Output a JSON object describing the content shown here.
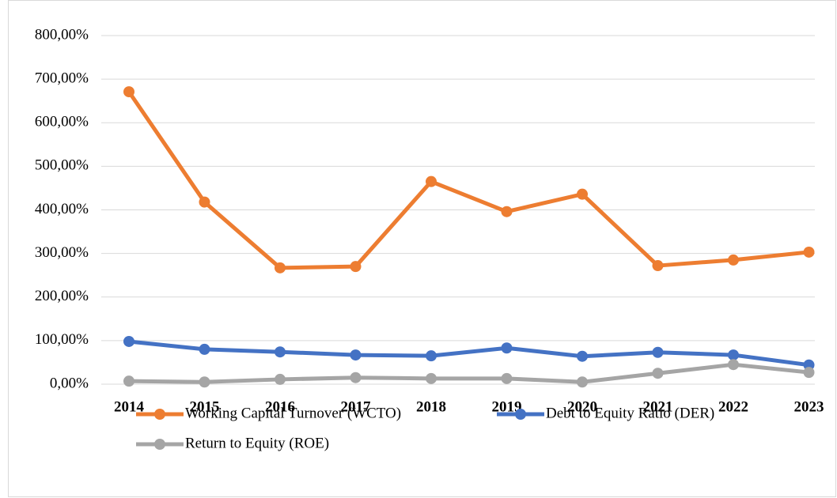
{
  "chart_data": {
    "type": "line",
    "categories": [
      "2014",
      "2015",
      "2016",
      "2017",
      "2018",
      "2019",
      "2020",
      "2021",
      "2022",
      "2023"
    ],
    "series": [
      {
        "name": "Working Capital Turnover (WCTO)",
        "color": "#ed7d31",
        "values": [
          671,
          418,
          267,
          270,
          465,
          396,
          436,
          272,
          285,
          303
        ]
      },
      {
        "name": "Debt to Equity Ratio (DER)",
        "color": "#4472c4",
        "values": [
          98,
          80,
          74,
          67,
          65,
          83,
          64,
          73,
          67,
          44
        ]
      },
      {
        "name": "Return to Equity (ROE)",
        "color": "#a5a5a5",
        "values": [
          7,
          5,
          11,
          15,
          13,
          13,
          5,
          25,
          45,
          27
        ]
      }
    ],
    "ylim": [
      0,
      800
    ],
    "yticks": [
      {
        "value": 0,
        "label": "0,00%"
      },
      {
        "value": 100,
        "label": "100,00%"
      },
      {
        "value": 200,
        "label": "200,00%"
      },
      {
        "value": 300,
        "label": "300,00%"
      },
      {
        "value": 400,
        "label": "400,00%"
      },
      {
        "value": 500,
        "label": "500,00%"
      },
      {
        "value": 600,
        "label": "600,00%"
      },
      {
        "value": 700,
        "label": "700,00%"
      },
      {
        "value": 800,
        "label": "800,00%"
      }
    ],
    "grid": true
  }
}
